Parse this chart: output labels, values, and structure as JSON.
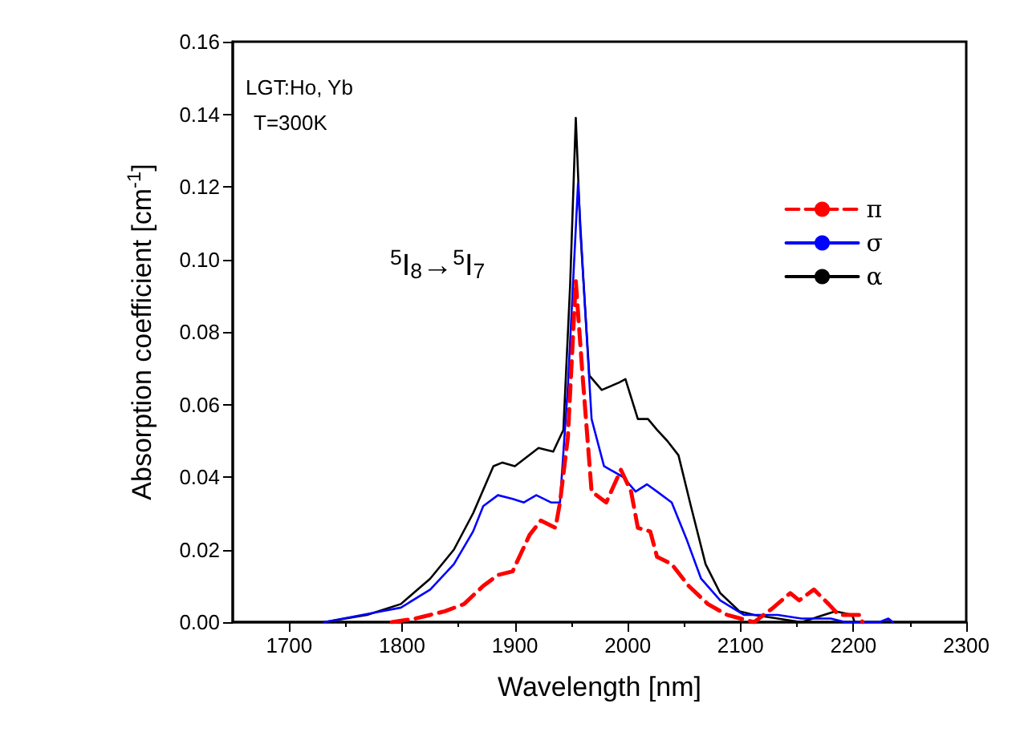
{
  "chart_data": {
    "type": "line",
    "xlabel": "Wavelength [nm]",
    "ylabel": "Absorption coefficient [cm$^{-1}$]",
    "xlim": [
      1650,
      2300
    ],
    "xticks": [
      1700,
      1800,
      1900,
      2000,
      2100,
      2200,
      2300
    ],
    "ylim": [
      0,
      0.16
    ],
    "yticks": [
      {
        "value": 0,
        "label": "0.00"
      },
      {
        "value": 0.02,
        "label": "0.02"
      },
      {
        "value": 0.04,
        "label": "0.04"
      },
      {
        "value": 0.06,
        "label": "0.06"
      },
      {
        "value": 0.08,
        "label": "0.08"
      },
      {
        "value": 0.1,
        "label": "0.10"
      },
      {
        "value": 0.12,
        "label": "0.12"
      },
      {
        "value": 0.14,
        "label": "0.14"
      },
      {
        "value": 0.16,
        "label": "0.16"
      }
    ],
    "grid": false,
    "legend": "top right",
    "marker": "none",
    "annotations": [
      "LGT:Ho, Yb",
      "T=300K",
      "$^{5}$I$_{8}$→$^{5}$I$_{7}$"
    ],
    "series": [
      {
        "name": "π",
        "color": "#ff0000",
        "line_style": "dashed",
        "x": [
          1791,
          1812,
          1825,
          1838,
          1855,
          1872,
          1885,
          1898,
          1913,
          1923,
          1936,
          1940,
          1947,
          1954,
          1960,
          1968,
          1981,
          1994,
          2003,
          2009,
          2020,
          2026,
          2039,
          2054,
          2071,
          2088,
          2112,
          2129,
          2144,
          2152,
          2165,
          2178,
          2187,
          2206,
          2208
        ],
        "values": [
          0,
          0.001,
          0.002,
          0.003,
          0.005,
          0.01,
          0.013,
          0.014,
          0.024,
          0.028,
          0.026,
          0.033,
          0.051,
          0.094,
          0.068,
          0.036,
          0.033,
          0.042,
          0.036,
          0.026,
          0.025,
          0.018,
          0.016,
          0.01,
          0.005,
          0.002,
          0,
          0.004,
          0.008,
          0.006,
          0.009,
          0.005,
          0.002,
          0.002,
          0
        ]
      },
      {
        "name": "σ",
        "color": "#0000ff",
        "line_style": "solid",
        "x": [
          1731,
          1799,
          1825,
          1846,
          1863,
          1872,
          1885,
          1898,
          1908,
          1919,
          1932,
          1940,
          1947,
          1956,
          1961,
          1968,
          1979,
          1996,
          2007,
          2017,
          2026,
          2039,
          2052,
          2065,
          2082,
          2103,
          2133,
          2154,
          2180,
          2193,
          2223,
          2231,
          2235
        ],
        "values": [
          0,
          0.004,
          0.009,
          0.016,
          0.025,
          0.032,
          0.035,
          0.034,
          0.033,
          0.035,
          0.033,
          0.033,
          0.065,
          0.121,
          0.093,
          0.056,
          0.043,
          0.04,
          0.036,
          0.038,
          0.036,
          0.033,
          0.023,
          0.012,
          0.006,
          0.002,
          0.002,
          0.001,
          0.001,
          0,
          0,
          0.001,
          0
        ]
      },
      {
        "name": "α",
        "color": "#000000",
        "line_style": "solid",
        "x": [
          1731,
          1769,
          1799,
          1825,
          1846,
          1863,
          1881,
          1889,
          1900,
          1921,
          1934,
          1943,
          1949,
          1954,
          1958,
          1966,
          1977,
          1992,
          1998,
          2009,
          2018,
          2026,
          2035,
          2045,
          2056,
          2069,
          2082,
          2099,
          2112,
          2154,
          2184,
          2199,
          2201
        ],
        "values": [
          0,
          0.002,
          0.005,
          0.012,
          0.02,
          0.03,
          0.043,
          0.044,
          0.043,
          0.048,
          0.047,
          0.053,
          0.093,
          0.139,
          0.108,
          0.068,
          0.064,
          0.066,
          0.067,
          0.056,
          0.056,
          0.053,
          0.05,
          0.046,
          0.032,
          0.016,
          0.008,
          0.003,
          0.002,
          0,
          0.003,
          0.002,
          0
        ]
      }
    ]
  }
}
